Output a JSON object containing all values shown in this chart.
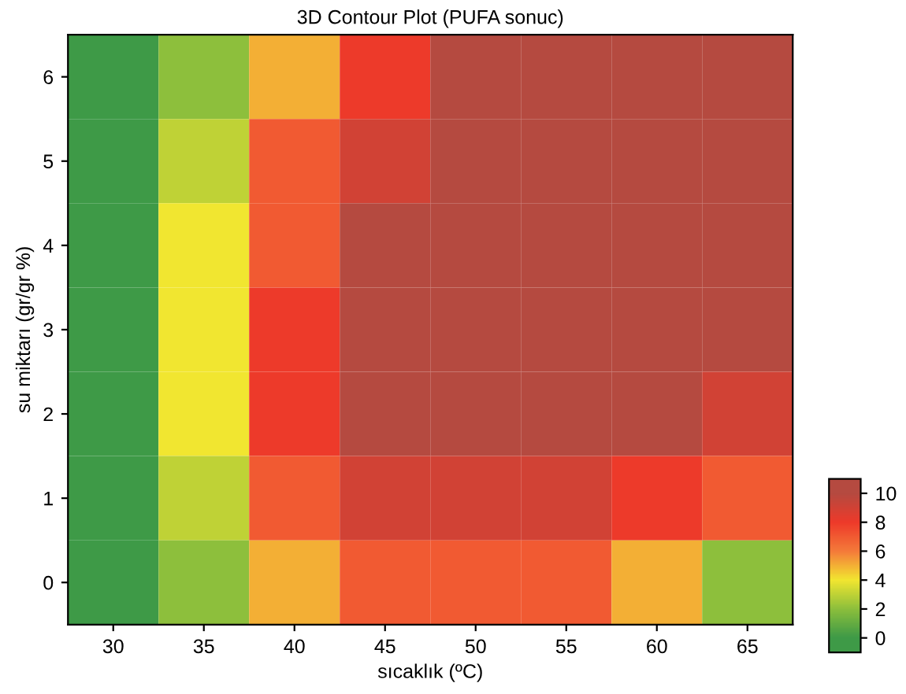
{
  "chart_data": {
    "type": "heatmap",
    "title": "3D Contour Plot (PUFA sonuc)",
    "xlabel": "sıcaklık (ºC)",
    "ylabel": "su miktarı (gr/gr %)",
    "categories": [
      "30",
      "35",
      "40",
      "45",
      "50",
      "55",
      "60",
      "65"
    ],
    "y_categories": [
      "6",
      "5",
      "4",
      "3",
      "2",
      "1",
      "0"
    ],
    "cells": [
      [
        -1,
        2,
        5,
        8,
        10,
        11,
        11,
        10
      ],
      [
        -1,
        3,
        7,
        9,
        11,
        11,
        11,
        10
      ],
      [
        0,
        4,
        7,
        10,
        11,
        11,
        11,
        10
      ],
      [
        0,
        4,
        8,
        10,
        11,
        11,
        11,
        10
      ],
      [
        0,
        4,
        8,
        10,
        11,
        11,
        10,
        9
      ],
      [
        -1,
        3,
        7,
        9,
        9,
        9,
        8,
        7
      ],
      [
        -1,
        2,
        5,
        7,
        7,
        7,
        5,
        2
      ]
    ],
    "clim": [
      -1,
      11
    ],
    "cticks": [
      0,
      2,
      4,
      6,
      8,
      10
    ],
    "colors": [
      "#3e9a47",
      "#8cbf3c",
      "#f2e630",
      "#f47a3a",
      "#ee3a2a",
      "#b54a40"
    ]
  }
}
